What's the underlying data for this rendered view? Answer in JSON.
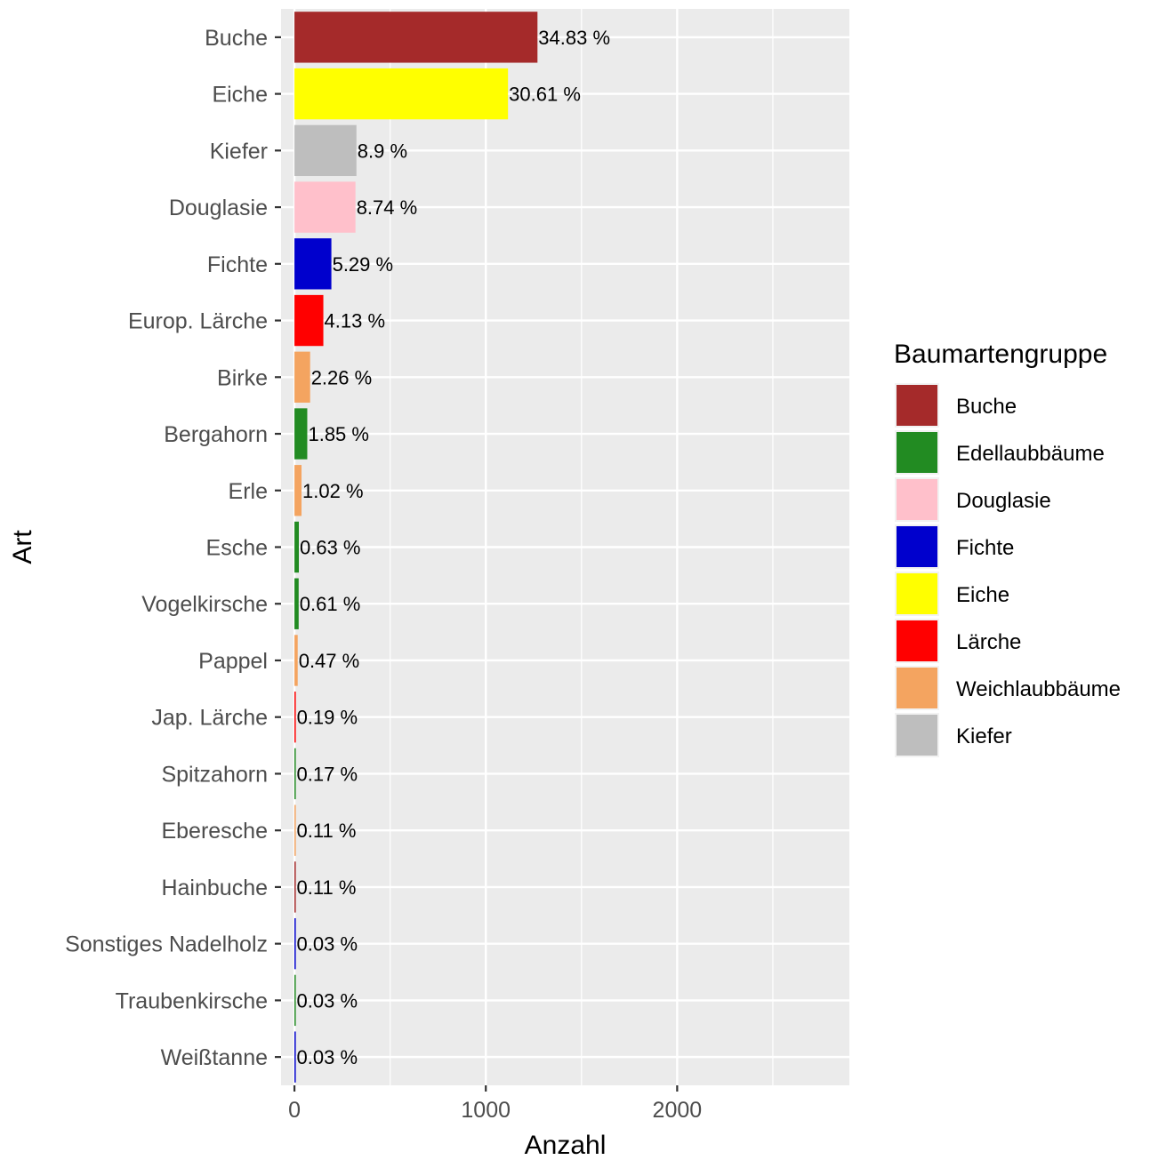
{
  "chart_data": {
    "type": "bar",
    "orientation": "horizontal",
    "xlabel": "Anzahl",
    "ylabel": "Art",
    "xlim": [
      -70,
      2900
    ],
    "xticks": [
      0,
      1000,
      2000
    ],
    "grid": true,
    "legend_position": "right",
    "legend": {
      "title": "Baumartengruppe",
      "items": [
        {
          "label": "Buche",
          "color": "#A52A2A"
        },
        {
          "label": "Edellaubbäume",
          "color": "#228B22"
        },
        {
          "label": "Douglasie",
          "color": "#FFC0CB"
        },
        {
          "label": "Fichte",
          "color": "#0000CD"
        },
        {
          "label": "Eiche",
          "color": "#FFFF00"
        },
        {
          "label": "Lärche",
          "color": "#FF0000"
        },
        {
          "label": "Weichlaubbäume",
          "color": "#F4A460"
        },
        {
          "label": "Kiefer",
          "color": "#BEBEBE"
        }
      ]
    },
    "categories": [
      "Buche",
      "Eiche",
      "Kiefer",
      "Douglasie",
      "Fichte",
      "Europ. Lärche",
      "Birke",
      "Bergahorn",
      "Erle",
      "Esche",
      "Vogelkirsche",
      "Pappel",
      "Jap. Lärche",
      "Spitzahorn",
      "Eberesche",
      "Hainbuche",
      "Sonstiges Nadelholz",
      "Traubenkirsche",
      "Weißtanne"
    ],
    "values": [
      1270,
      1116,
      324,
      319,
      193,
      151,
      82,
      67,
      37,
      23,
      22,
      17,
      7,
      6,
      4,
      4,
      1,
      1,
      1
    ],
    "labels": [
      "34.83 %",
      "30.61 %",
      "8.9 %",
      "8.74 %",
      "5.29 %",
      "4.13 %",
      "2.26 %",
      "1.85 %",
      "1.02 %",
      "0.63 %",
      "0.61 %",
      "0.47 %",
      "0.19 %",
      "0.17 %",
      "0.11 %",
      "0.11 %",
      "0.03 %",
      "0.03 %",
      "0.03 %"
    ],
    "groups": [
      "Buche",
      "Eiche",
      "Kiefer",
      "Douglasie",
      "Fichte",
      "Lärche",
      "Weichlaubbäume",
      "Edellaubbäume",
      "Weichlaubbäume",
      "Edellaubbäume",
      "Edellaubbäume",
      "Weichlaubbäume",
      "Lärche",
      "Edellaubbäume",
      "Weichlaubbäume",
      "Buche",
      "Fichte",
      "Edellaubbäume",
      "Fichte"
    ]
  }
}
